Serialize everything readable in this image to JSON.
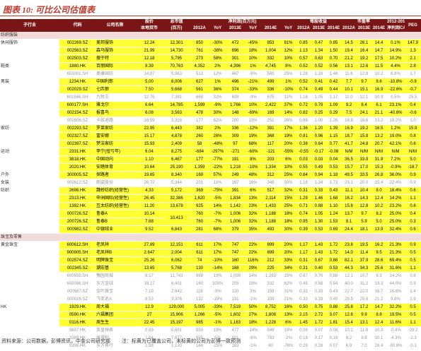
{
  "title": "图表 10: 可比公司估值表",
  "table": {
    "header": [
      [
        "子行业",
        "代码",
        "公司名称",
        "股价",
        "总市值",
        "净利润(百万元)",
        "每股收益",
        "市盈率",
        "2012-2014年",
        "PEG"
      ],
      [
        "本地货币",
        "(百万)",
        "2012A",
        "YoY",
        "2013E",
        "YoY",
        "2014E",
        "YoY",
        "2012A",
        "2013E",
        "2014E",
        "2012A",
        "2013E",
        "2014E",
        "净利润CAGR"
      ]
    ],
    "rows": [
      {
        "section": "纺织服装"
      },
      {
        "group": "休闲服饰",
        "style": "yellow",
        "cells": [
          "002269.SZ",
          "美邦服饰",
          "12.24",
          "12,301",
          "850",
          "-30%",
          "472",
          "-45%",
          "853",
          "81%",
          "0.85",
          "0.47",
          "0.85",
          "14.5",
          "26.1",
          "14.4",
          "0.1%",
          "147.9"
        ]
      },
      {
        "style": "yellow",
        "cells": [
          "002563.SZ",
          "森马服饰",
          "21.99",
          "14,730",
          "761",
          "-38%",
          "896",
          "18%",
          "1,004",
          "12%",
          "1.13",
          "1.34",
          "1.50",
          "19.4",
          "16.4",
          "14.7",
          "14.9%",
          "1.3"
        ]
      },
      {
        "style": "yellow",
        "cells": [
          "002503.SZ",
          "搜于特",
          "12.18",
          "5,795",
          "273",
          "58%",
          "301",
          "10%",
          "332",
          "10%",
          "0.57",
          "0.63",
          "0.70",
          "21.2",
          "19.2",
          "17.5",
          "10.2%",
          "2.1"
        ]
      },
      {
        "group": "鞋类",
        "style": "yellow",
        "cells": [
          "1880.HK",
          "百丽国际",
          "8.39",
          "70,763",
          "4,352",
          "2%",
          "4,396",
          "1%",
          "4,745",
          "8%",
          "0.52",
          "0.52",
          "0.56",
          "13.1",
          "12.6",
          "11.5",
          "4.4%",
          "2.8"
        ]
      },
      {
        "style": "grey",
        "cells": [
          "603001.SH",
          "奥康国际",
          "14.87",
          "5,963",
          "513",
          "12%",
          "467",
          "-9%",
          "585",
          "25%",
          "1.28",
          "1.16",
          "1.46",
          "11.6",
          "12.8",
          "10.2",
          "6.8%",
          "1.7"
        ]
      },
      {
        "group": "男装",
        "style": "yellow",
        "cells": [
          "1234.HK",
          "中国利郎",
          "5.00",
          "6,006",
          "627",
          "1%",
          "496",
          "-21%",
          "499",
          "1%",
          "0.52",
          "0.41",
          "0.42",
          "7.7",
          "9.7",
          "9.6",
          "-10.8%",
          "-0.9"
        ]
      },
      {
        "style": "yellow",
        "cells": [
          "002029.SZ",
          "七匹狼",
          "7.50",
          "5,668",
          "561",
          "36%",
          "374",
          "-33%",
          "336",
          "-10%",
          "0.74",
          "0.49",
          "0.44",
          "10.1",
          "15.1",
          "16.9",
          "-22.6%",
          "-0.7"
        ]
      },
      {
        "style": "grey",
        "cells": [
          "601566.SH",
          "九牧王",
          "12.76",
          "7,381",
          "668",
          "32%",
          "608",
          "-9%",
          "675",
          "11%",
          "1.16",
          "1.05",
          "1.17",
          "11.0",
          "12.1",
          "10.9",
          "0.5%",
          "25.5"
        ]
      },
      {
        "style": "yellow",
        "cells": [
          "600177.SH",
          "雅戈尔",
          "6.64",
          "14,785",
          "1,599",
          "-9%",
          "1,766",
          "10%",
          "2,422",
          "37%",
          "0.72",
          "0.79",
          "1.09",
          "9.2",
          "8.4",
          "6.1",
          "23.1%",
          "0.4"
        ]
      },
      {
        "style": "yellow",
        "cells": [
          "002154.SZ",
          "报喜鸟",
          "6.08",
          "3,563",
          "478",
          "30%",
          "148",
          "-69%",
          "169",
          "14%",
          "0.82",
          "0.25",
          "0.29",
          "7.5",
          "24.1",
          "21.1",
          "-40.6%",
          "-0.6"
        ]
      },
      {
        "style": "grey",
        "cells": [
          "002656.SZ",
          "卡奴迪路",
          "16.59",
          "3,318",
          "177",
          "62%",
          "200",
          "13%",
          "251",
          "26%",
          "0.88",
          "1.00",
          "1.26",
          "18.8",
          "16.6",
          "13.2",
          "19.2%",
          "1.0"
        ]
      },
      {
        "group": "家纺",
        "style": "yellow",
        "cells": [
          "002293.SZ",
          "罗莱家纺",
          "22.95",
          "6,443",
          "382",
          "2%",
          "336",
          "-12%",
          "391",
          "17%",
          "1.36",
          "1.20",
          "1.39",
          "16.9",
          "19.2",
          "16.5",
          "1.2%",
          "15.9"
        ]
      },
      {
        "style": "yellow",
        "cells": [
          "002327.SZ",
          "富安娜",
          "15.17",
          "4,878",
          "260",
          "26%",
          "309",
          "19%",
          "368",
          "19%",
          "0.81",
          "0.96",
          "1.15",
          "18.7",
          "15.8",
          "13.2",
          "19.0%",
          "0.8"
        ]
      },
      {
        "style": "yellow",
        "cells": [
          "002397.SZ",
          "梦洁家纺",
          "15.93",
          "2,409",
          "58",
          "-48%",
          "97",
          "68%",
          "117",
          "20%",
          "0.38",
          "0.64",
          "0.77",
          "41.7",
          "24.8",
          "20.7",
          "42.1%",
          "0.6"
        ]
      },
      {
        "group": "运动",
        "style": "yellow",
        "cells": [
          "2331.HK",
          "李宁(扭亏年)",
          "6.04",
          "8,275",
          "-684",
          "-297%",
          "-271",
          "-60%",
          "-121",
          "-55%",
          "-0.55",
          "-0.17",
          "-0.08",
          "N/M",
          "N/M",
          "N/M",
          "N/M",
          "N/M"
        ]
      },
      {
        "style": "yellow",
        "cells": [
          "3818.HK",
          "中国动向",
          "1.10",
          "6,467",
          "177",
          "-77%",
          "191",
          "8%",
          "203",
          "6%",
          "0.03",
          "0.03",
          "0.04",
          "36.5",
          "33.9",
          "31.9",
          "7.2%",
          "5.0"
        ]
      },
      {
        "style": "yellow",
        "cells": [
          "2020.HK",
          "安踏体育",
          "10.64",
          "25,190",
          "1,359",
          "-22%",
          "1,218",
          "-10%",
          "1,334",
          "10%",
          "0.55",
          "0.49",
          "0.53",
          "15.7",
          "17.0",
          "15.3",
          "-0.9%",
          "-18.7"
        ]
      },
      {
        "group": "户外",
        "style": "yellow",
        "cells": [
          "300005.SZ",
          "探路者",
          "19.65",
          "8,340",
          "169",
          "57%",
          "249",
          "48%",
          "312",
          "25%",
          "0.64",
          "0.94",
          "1.18",
          "49.5",
          "33.5",
          "26.8",
          "36.0%",
          "0.9"
        ]
      },
      {
        "group": "女装",
        "style": "grey",
        "cells": [
          "002612.SZ",
          "朗姿股份",
          "26.72",
          "5,344",
          "231",
          "11%",
          "267",
          "16%",
          "346",
          "30%",
          "1.16",
          "1.34",
          "1.73",
          "23.1",
          "20.0",
          "15.4",
          "22.4%",
          "0.9"
        ]
      },
      {
        "group": "纺织",
        "style": "yellow",
        "cells": [
          "2698.HK",
          "魏桥纺织(经营性)",
          "4.33",
          "5,172",
          "369",
          "-75%",
          "391",
          "6%",
          "517",
          "32%",
          "0.31",
          "0.33",
          "0.43",
          "11.1",
          "10.4",
          "8.0",
          "18.4%",
          "0.6"
        ]
      },
      {
        "style": "yellow",
        "cells": [
          "2313.HK",
          "申洲国际(经营性)",
          "26.45",
          "32,386",
          "1,620",
          "-5%",
          "1,834",
          "13%",
          "2,114",
          "15%",
          "1.29",
          "1.46",
          "1.68",
          "16.2",
          "14.3",
          "12.4",
          "14.2%",
          "1.1"
        ]
      },
      {
        "style": "yellow",
        "cells": [
          "1382.HK",
          "互太纺织(经营性)",
          "11.20",
          "13,678",
          "925",
          "14%",
          "1,142",
          "23%",
          "1,433",
          "25%",
          "0.71",
          "0.88",
          "1.10",
          "15.8",
          "12.8",
          "10.2",
          "23.2%",
          "0.6"
        ]
      },
      {
        "style": "yellow",
        "cells": [
          "000726.SZ",
          "鲁泰A",
          "10.14",
          "10,413",
          "760",
          "-7%",
          "1,006",
          "32%",
          "1,188",
          "18%",
          "0.74",
          "1.05",
          "1.24",
          "13.7",
          "9.7",
          "8.2",
          "25.0%",
          "0.4"
        ]
      },
      {
        "style": "yellow",
        "cells": [
          "200726.SZ",
          "鲁泰B",
          "7.68",
          null,
          "760",
          "-7%",
          "1,006",
          "32%",
          "1,188",
          "18%",
          "0.95",
          "1.30",
          "1.53",
          "8.1",
          "5.9",
          "5.0",
          "25.0%",
          "0.3"
        ]
      },
      {
        "style": "yellow",
        "cells": [
          "000982.SZ",
          "中银绒业",
          "9.52",
          "6,843",
          "281",
          "68%",
          "379",
          "35%",
          "493",
          "30%",
          "0.39",
          "0.53",
          "0.69",
          "24.4",
          "18.1",
          "13.9",
          "32.4%",
          "0.6"
        ]
      },
      {
        "section": "珠宝及零售"
      },
      {
        "group": "黄金珠宝",
        "style": "yellow",
        "cells": [
          "600612.SH",
          "老凤祥",
          "27.89",
          "12,151",
          "611",
          "17%",
          "747",
          "22%",
          "899",
          "20%",
          "1.17",
          "1.43",
          "1.72",
          "23.8",
          "19.5",
          "16.2",
          "21.3%",
          "0.9"
        ]
      },
      {
        "style": "yellow",
        "cells": [
          "900905.SH",
          "老凤祥B",
          "2.647",
          "2,004",
          "611",
          "17%",
          "747",
          "22%",
          "899",
          "20%",
          "1.17",
          "1.43",
          "1.72",
          "14.0",
          "11.4",
          "9.5",
          "21.3%",
          "0.5"
        ]
      },
      {
        "style": "yellow",
        "cells": [
          "002574.SZ",
          "明牌珠宝",
          "25.26",
          "6,062",
          "74",
          "-10%",
          "160",
          "116%",
          "212",
          "33%",
          "0.31",
          "0.67",
          "0.88",
          "82.1",
          "37.9",
          "28.6",
          "69.4%",
          "0.5"
        ]
      },
      {
        "style": "yellow",
        "cells": [
          "002345.SZ",
          "潮宏基",
          "13.65",
          "5,768",
          "130",
          "-14%",
          "168",
          "29%",
          "225",
          "34%",
          "0.31",
          "0.40",
          "0.53",
          "44.3",
          "34.3",
          "25.6",
          "31.6%",
          "1.1"
        ]
      },
      {
        "style": "grey",
        "cells": [
          "600655.SH",
          "豫园商城",
          "8.17",
          "11,743",
          "968",
          "13%",
          "1,099",
          "14%",
          "1,263",
          "15%",
          "0.67",
          "0.76",
          "0.88",
          "12.1",
          "10.7",
          "9.3",
          "14.2%",
          "0.8"
        ]
      },
      {
        "style": "grey",
        "cells": [
          "600086.SH",
          "东方金钰",
          "18.17",
          "6,401",
          "160",
          "105%",
          "205",
          "29%",
          "332",
          "62%",
          "0.45",
          "0.58",
          "0.94",
          "40.0",
          "31.2",
          "19.3",
          "44.0%",
          "0.9"
        ]
      },
      {
        "style": "grey",
        "cells": [
          "000587.SZ",
          "金叶珠宝",
          "7.19",
          "2,642",
          "116",
          "-9%",
          "120",
          "3%",
          "158",
          "31%",
          "0.33",
          "0.33",
          "0.43",
          "22.7",
          "22.0",
          "16.7",
          "16.6%",
          "1.4"
        ]
      },
      {
        "style": "grey",
        "cells": [
          "000026.SZ",
          "飞亚达A",
          "8.53",
          "3,376",
          "132",
          "-19%",
          "131",
          "-1%",
          "159",
          "21%",
          "0.33",
          "0.33",
          "0.40",
          "25.5",
          "25.6",
          "21.2",
          "9.8%",
          "2.6"
        ]
      },
      {
        "group": "HK",
        "style": "yellow",
        "cells": [
          "1929.HK",
          "周大福",
          "12.9",
          "129,000",
          "5,005",
          "-33%",
          "7,519",
          "50%",
          "8,752",
          "16%",
          "0.50",
          "0.75",
          "0.88",
          "25.8",
          "17.2",
          "14.7",
          "32.2%",
          "0.5"
        ]
      },
      {
        "style": "yellow",
        "cells": [
          "0590.HK",
          "六福集团",
          "27",
          "15,906",
          "1,266",
          "-5%",
          "1,602",
          "27%",
          "1,808",
          "13%",
          "2.15",
          "2.72",
          "3.07",
          "12.6",
          "9.9",
          "8.8",
          "19.5%",
          "0.5"
        ]
      },
      {
        "style": "yellow",
        "cells": [
          "0116.HK",
          "周生生",
          "22.45",
          "15,197",
          "985",
          "-1%",
          "1,163",
          "18%",
          "1,228",
          "6%",
          "1.45",
          "1.72",
          "1.81",
          "15.4",
          "13.1",
          "12.4",
          "11.6%",
          "1.1"
        ]
      },
      {
        "style": "grey",
        "cells": [
          "0887.HK",
          "英皇钟表",
          "0.83",
          "5,651",
          "553",
          "15%",
          "477",
          "-14%",
          "549",
          "15%",
          "0.08",
          "0.07",
          "0.08",
          "10.2",
          "11.8",
          "10.3",
          "-0.4%",
          "-29.2"
        ]
      },
      {
        "style": "grey",
        "cells": [
          "3389.HK",
          "亨得利",
          "1.64",
          "7,877",
          "855",
          "5%",
          "801",
          "-6%",
          "783",
          "-2%",
          "0.18",
          "0.17",
          "0.16",
          "9.2",
          "9.8",
          "10.1",
          "-4.3%",
          "-2.3"
        ]
      },
      {
        "style": "grey",
        "cells": [
          "0398.HK",
          "东方表行",
          "1.98",
          "1,130",
          "164",
          "-25%",
          "163",
          "-1%",
          "40",
          "-76%",
          "0.29",
          "0.28",
          "0.07",
          "6.9",
          "7.0",
          "28.4",
          "-50.8%",
          "-0.1"
        ]
      }
    ]
  },
  "footer": {
    "source": "资料来源：公司数据，彭博资讯，中金公司研究部",
    "note": "注：标黄为已覆盖公司，未标黄的公司为彭博一致预测"
  }
}
